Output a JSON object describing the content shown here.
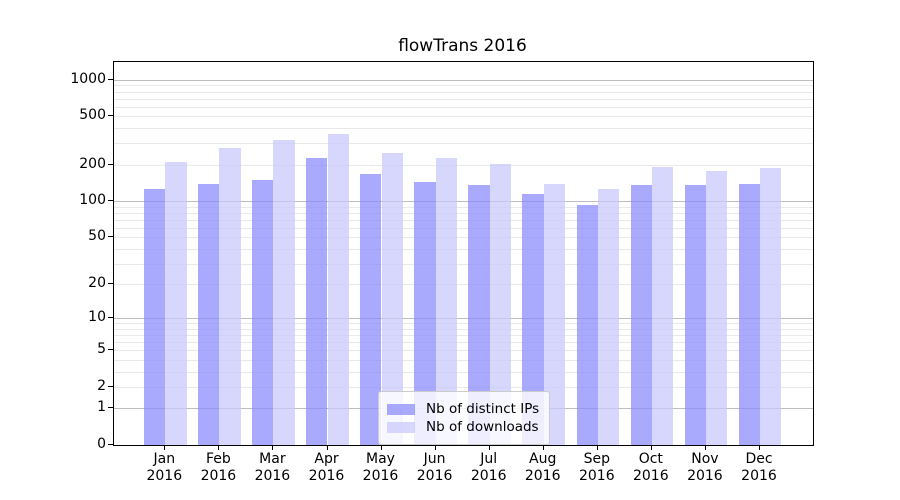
{
  "chart_data": {
    "type": "bar",
    "title": "flowTrans 2016",
    "yscale": "log1p",
    "ylim": [
      0,
      1400
    ],
    "yticks": [
      0,
      1,
      2,
      5,
      10,
      20,
      50,
      100,
      200,
      500,
      1000
    ],
    "major_gridlines": [
      1,
      10,
      100,
      1000
    ],
    "minor_gridlines": [
      2,
      3,
      4,
      5,
      6,
      7,
      8,
      9,
      20,
      30,
      40,
      50,
      60,
      70,
      80,
      90,
      200,
      300,
      400,
      500,
      600,
      700,
      800,
      900
    ],
    "categories": [
      "Jan",
      "Feb",
      "Mar",
      "Apr",
      "May",
      "Jun",
      "Jul",
      "Aug",
      "Sep",
      "Oct",
      "Nov",
      "Dec"
    ],
    "category_year": "2016",
    "bar_alpha": 0.75,
    "grid_on": true,
    "legend_position": "lower-center",
    "series": [
      {
        "name": "Nb of distinct IPs",
        "color": "#8c8cfc",
        "values": [
          127,
          139,
          150,
          225,
          169,
          144,
          135,
          115,
          93,
          137,
          135,
          139
        ]
      },
      {
        "name": "Nb of downloads",
        "color": "#cacafc",
        "values": [
          209,
          275,
          319,
          355,
          252,
          228,
          201,
          138,
          125,
          191,
          178,
          189
        ]
      }
    ]
  }
}
